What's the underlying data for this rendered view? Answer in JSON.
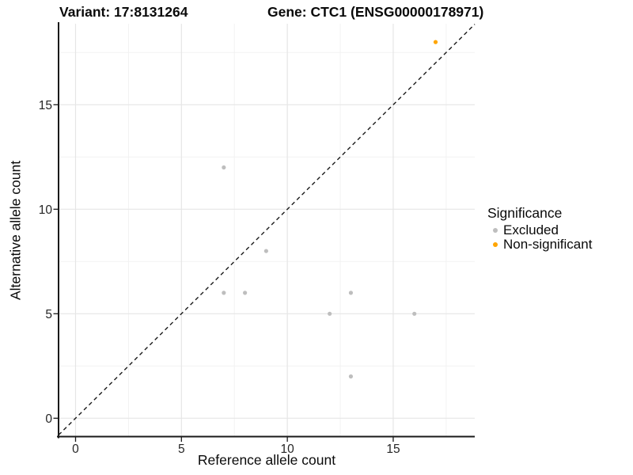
{
  "titles": {
    "variant": "Variant: 17:8131264",
    "gene": "Gene: CTC1 (ENSG00000178971)"
  },
  "legend": {
    "title": "Significance",
    "items": [
      {
        "label": "Excluded",
        "color": "#BEBEBE"
      },
      {
        "label": "Non-significant",
        "color": "#FFA500"
      }
    ]
  },
  "chart_data": {
    "type": "scatter",
    "title": "Variant: 17:8131264    Gene: CTC1 (ENSG00000178971)",
    "xlabel": "Reference allele count",
    "ylabel": "Alternative allele count",
    "xlim": [
      -0.8,
      18.85
    ],
    "ylim": [
      -0.88,
      18.88
    ],
    "x_ticks": [
      0,
      5,
      10,
      15
    ],
    "y_ticks": [
      0,
      5,
      10,
      15
    ],
    "minor_ticks": [
      2.5,
      7.5,
      12.5,
      17.5
    ],
    "grid": true,
    "legend_position": "right",
    "legend_title": "Significance",
    "reference_line": {
      "type": "identity",
      "style": "dashed",
      "color": "#1a1a1a"
    },
    "series": [
      {
        "name": "Excluded",
        "color": "#BEBEBE",
        "points": [
          [
            7,
            12
          ],
          [
            7,
            6
          ],
          [
            8,
            6
          ],
          [
            9,
            8
          ],
          [
            12,
            5
          ],
          [
            13,
            6
          ],
          [
            13,
            2
          ],
          [
            16,
            5
          ]
        ]
      },
      {
        "name": "Non-significant",
        "color": "#FFA500",
        "points": [
          [
            17,
            18
          ]
        ]
      }
    ],
    "colors": {
      "excluded": "#BEBEBE",
      "non_significant": "#FFA500",
      "grid_major": "#E6E6E6",
      "grid_minor": "#F2F2F2",
      "axis": "#1a1a1a"
    }
  }
}
